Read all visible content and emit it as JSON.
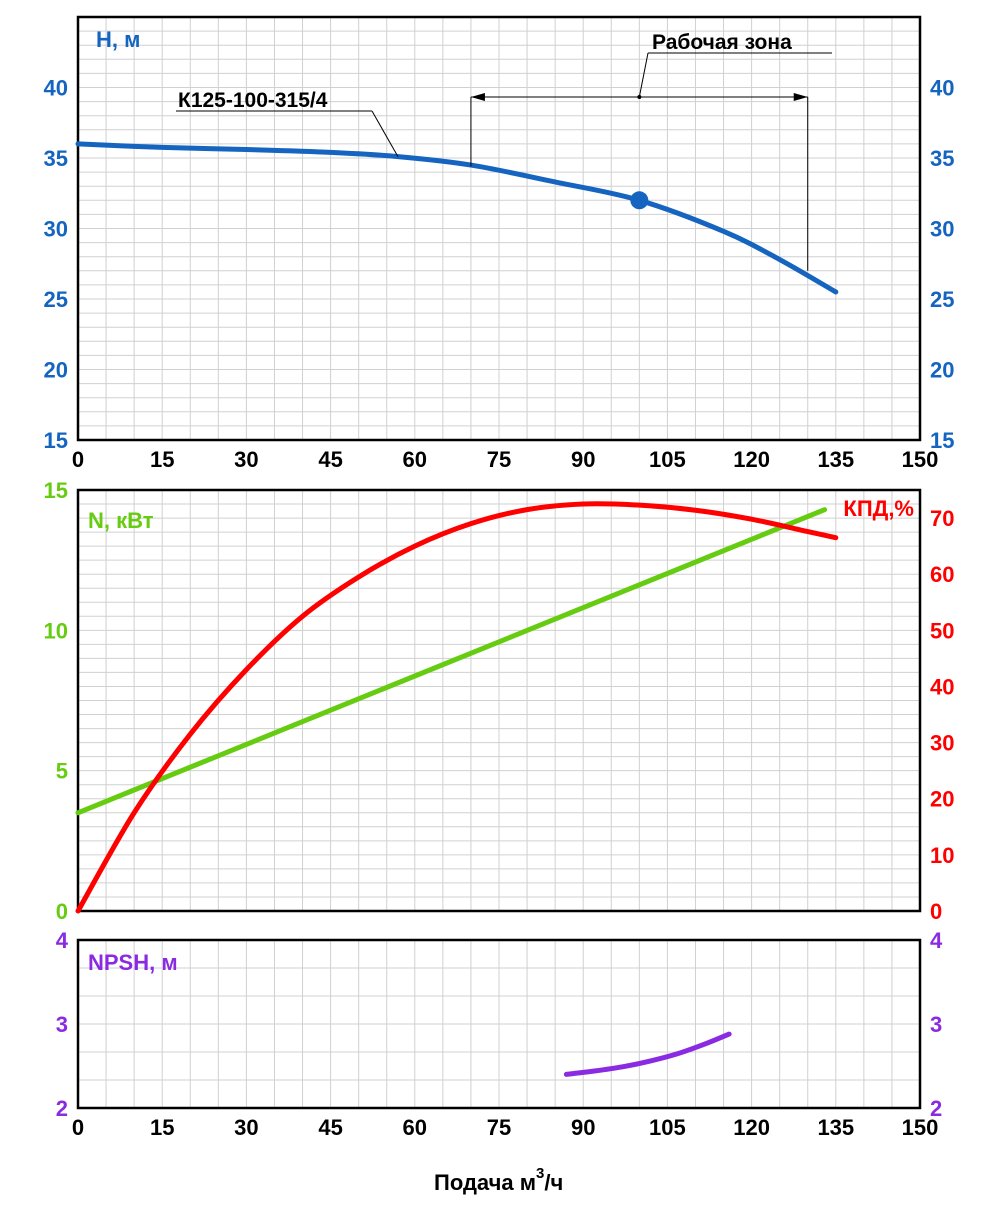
{
  "colors": {
    "head": "#1565c0",
    "power": "#66cc11",
    "efficiency": "#ff0000",
    "npsh": "#8a2be2",
    "axis": "#000000",
    "grid": "#d0d0d0"
  },
  "chart_data": [
    {
      "type": "line",
      "panel": "head",
      "ylabel": "Н, м",
      "xlim": [
        0,
        150
      ],
      "ylim": [
        15,
        45
      ],
      "x_ticks": [
        "0",
        "15",
        "30",
        "45",
        "60",
        "75",
        "90",
        "105",
        "120",
        "135",
        "150"
      ],
      "y_ticks": [
        "15",
        "20",
        "25",
        "30",
        "35",
        "40"
      ],
      "series": [
        {
          "name": "К125-100-315/4",
          "x": [
            0,
            15,
            30,
            45,
            57,
            70,
            85,
            100,
            115,
            125,
            135
          ],
          "y": [
            36.0,
            35.75,
            35.6,
            35.4,
            35.1,
            34.5,
            33.3,
            32.0,
            29.8,
            27.8,
            25.5
          ]
        }
      ],
      "duty_point": {
        "x": 100,
        "y": 32.0
      },
      "annotations": {
        "curve_label": "К125-100-315/4",
        "working_zone_label": "Рабочая зона",
        "working_zone": [
          70,
          130
        ]
      }
    },
    {
      "type": "line",
      "panel": "power-efficiency",
      "ylabel_left": "N, кВт",
      "ylabel_right": "КПД,%",
      "xlim": [
        0,
        150
      ],
      "ylim_left": [
        0,
        15
      ],
      "ylim_right": [
        0,
        75
      ],
      "x_ticks": [
        "0",
        "15",
        "30",
        "45",
        "60",
        "75",
        "90",
        "105",
        "120",
        "135",
        "150"
      ],
      "y_ticks_left": [
        "0",
        "5",
        "10",
        "15"
      ],
      "y_ticks_right": [
        "0",
        "10",
        "20",
        "30",
        "40",
        "50",
        "60",
        "70"
      ],
      "series": [
        {
          "name": "N, кВт",
          "axis": "left",
          "x": [
            0,
            133
          ],
          "y": [
            3.5,
            14.3
          ]
        },
        {
          "name": "КПД,%",
          "axis": "right",
          "x": [
            0,
            10,
            20,
            30,
            40,
            50,
            60,
            70,
            80,
            90,
            100,
            110,
            120,
            130,
            135
          ],
          "y": [
            0,
            17.5,
            31.5,
            43,
            52.5,
            59.5,
            65,
            69,
            71.5,
            72.5,
            72.3,
            71.4,
            69.8,
            67.6,
            66.5
          ]
        }
      ]
    },
    {
      "type": "line",
      "panel": "npsh",
      "ylabel": "NPSH, м",
      "xlabel_main": "Подача м",
      "xlabel_sup": "3",
      "xlabel_tail": "/ч",
      "xlim": [
        0,
        150
      ],
      "ylim": [
        2,
        4
      ],
      "x_ticks": [
        "0",
        "15",
        "30",
        "45",
        "60",
        "75",
        "90",
        "105",
        "120",
        "135",
        "150"
      ],
      "y_ticks": [
        "2",
        "3",
        "4"
      ],
      "series": [
        {
          "name": "NPSH, м",
          "x": [
            87,
            92,
            97,
            102,
            107,
            112,
            116
          ],
          "y": [
            2.4,
            2.44,
            2.49,
            2.56,
            2.65,
            2.77,
            2.88
          ]
        }
      ]
    }
  ]
}
